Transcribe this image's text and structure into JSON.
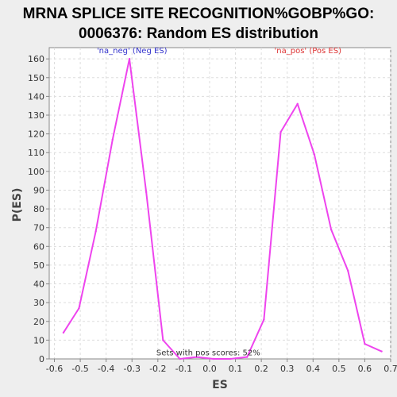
{
  "chart_data": {
    "type": "line",
    "title_line1": "MRNA SPLICE SITE RECOGNITION%GOBP%GO:",
    "title_line2": "0006376: Random ES distribution",
    "xlabel": "ES",
    "ylabel": "P(ES)",
    "xlim": [
      -0.62,
      0.7
    ],
    "ylim": [
      0,
      166
    ],
    "xticks": [
      -0.6,
      -0.5,
      -0.4,
      -0.3,
      -0.2,
      -0.1,
      0.0,
      0.1,
      0.2,
      0.3,
      0.4,
      0.5,
      0.6,
      0.7
    ],
    "xtick_labels": [
      "-0.6",
      "-0.5",
      "-0.4",
      "-0.3",
      "-0.2",
      "-0.1",
      "0.0",
      "0.1",
      "0.2",
      "0.3",
      "0.4",
      "0.5",
      "0.6",
      "0.7"
    ],
    "yticks": [
      0,
      10,
      20,
      30,
      40,
      50,
      60,
      70,
      80,
      90,
      100,
      110,
      120,
      130,
      140,
      150,
      160
    ],
    "ytick_labels": [
      "0",
      "10",
      "20",
      "30",
      "40",
      "50",
      "60",
      "70",
      "80",
      "90",
      "100",
      "110",
      "120",
      "130",
      "140",
      "150",
      "160"
    ],
    "grid": true,
    "line_color": "#ee44ee",
    "series": [
      {
        "x": [
          -0.565,
          -0.505,
          -0.44,
          -0.375,
          -0.31,
          -0.245,
          -0.18,
          -0.115,
          -0.05,
          0.015,
          0.08,
          0.145,
          0.21,
          0.275,
          0.34,
          0.405,
          0.47,
          0.535,
          0.6,
          0.665
        ],
        "y": [
          14,
          27,
          68,
          117,
          160,
          89,
          10,
          0,
          1,
          0,
          0,
          1,
          21,
          121,
          136,
          109,
          69,
          47,
          8,
          4
        ]
      }
    ],
    "annotations": [
      {
        "text": "'na_neg' (Neg ES)",
        "x": -0.3,
        "y": 163,
        "color": "#3333cc"
      },
      {
        "text": "'na_pos' (Pos ES)",
        "x": 0.38,
        "y": 163,
        "color": "#dd3333"
      },
      {
        "text": "Sets with pos scores: 52%",
        "x": -0.005,
        "y": 2,
        "color": "#333333"
      }
    ]
  }
}
